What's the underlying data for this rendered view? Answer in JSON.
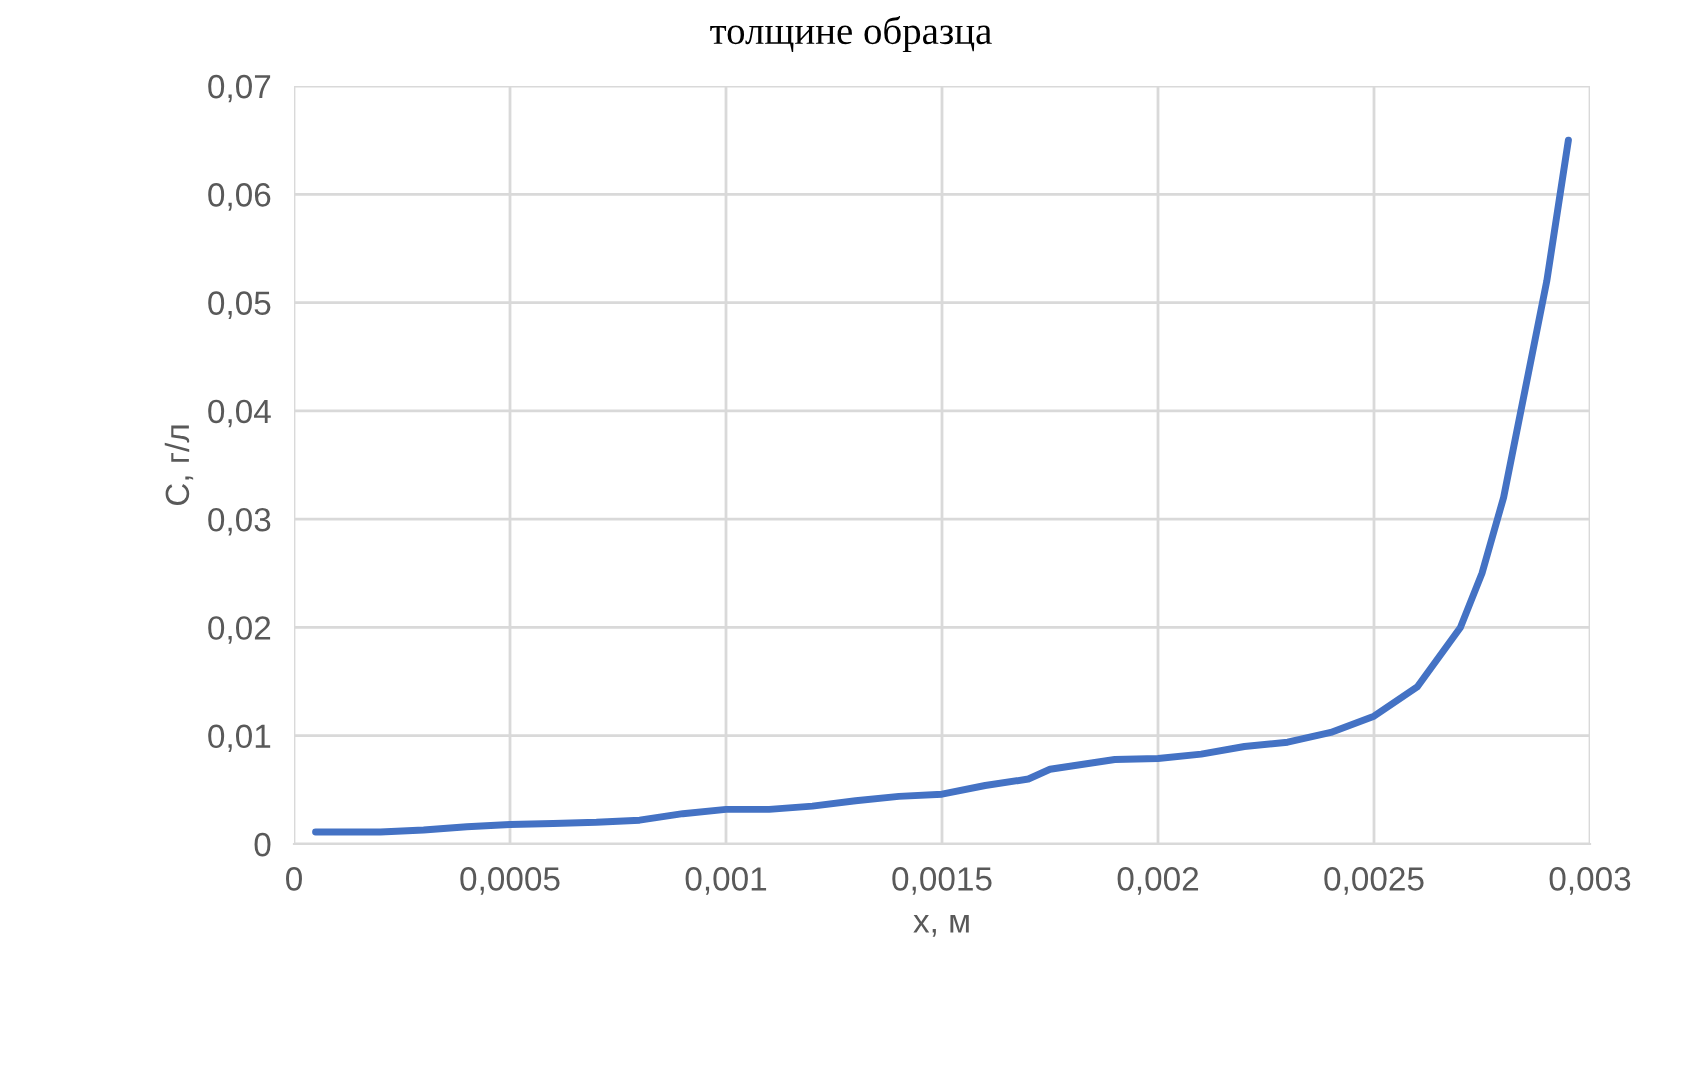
{
  "chart_data": {
    "type": "line",
    "title": "толщине образца",
    "xlabel": "x, м",
    "ylabel": "C, г/л",
    "x": [
      5e-05,
      0.0002,
      0.0003,
      0.0004,
      0.0005,
      0.0006,
      0.0007,
      0.0008,
      0.0009,
      0.001,
      0.0011,
      0.0012,
      0.0013,
      0.0014,
      0.0015,
      0.0016,
      0.0017,
      0.00175,
      0.0018,
      0.0019,
      0.002,
      0.0021,
      0.0022,
      0.0023,
      0.0024,
      0.0025,
      0.0026,
      0.0027,
      0.00275,
      0.0028,
      0.00285,
      0.0029,
      0.00295
    ],
    "series": [
      {
        "color": "#4472c4",
        "values": [
          0.0011,
          0.0011,
          0.0013,
          0.0016,
          0.0018,
          0.0019,
          0.002,
          0.0022,
          0.0028,
          0.0032,
          0.0032,
          0.0035,
          0.004,
          0.0044,
          0.0046,
          0.0054,
          0.006,
          0.0069,
          0.0072,
          0.0078,
          0.0079,
          0.0083,
          0.009,
          0.0094,
          0.0103,
          0.0118,
          0.0145,
          0.02,
          0.025,
          0.032,
          0.042,
          0.052,
          0.065
        ]
      }
    ],
    "xlim": [
      0,
      0.003
    ],
    "ylim": [
      0,
      0.07
    ],
    "xticks": [
      0,
      {
        "value": 0.0005,
        "label": "0,0005"
      },
      {
        "value": 0.001,
        "label": "0,001"
      },
      {
        "value": 0.0015,
        "label": "0,0015"
      },
      {
        "value": 0.002,
        "label": "0,002"
      },
      {
        "value": 0.0025,
        "label": "0,0025"
      },
      {
        "value": 0.003,
        "label": "0,003"
      }
    ],
    "yticks": [
      0,
      {
        "value": 0.01,
        "label": "0,01"
      },
      {
        "value": 0.02,
        "label": "0,02"
      },
      {
        "value": 0.03,
        "label": "0,03"
      },
      {
        "value": 0.04,
        "label": "0,04"
      },
      {
        "value": 0.05,
        "label": "0,05"
      },
      {
        "value": 0.06,
        "label": "0,06"
      },
      {
        "value": 0.07,
        "label": "0,07"
      }
    ],
    "grid": true,
    "legend": false,
    "marker": "none",
    "line_style": "solid"
  }
}
